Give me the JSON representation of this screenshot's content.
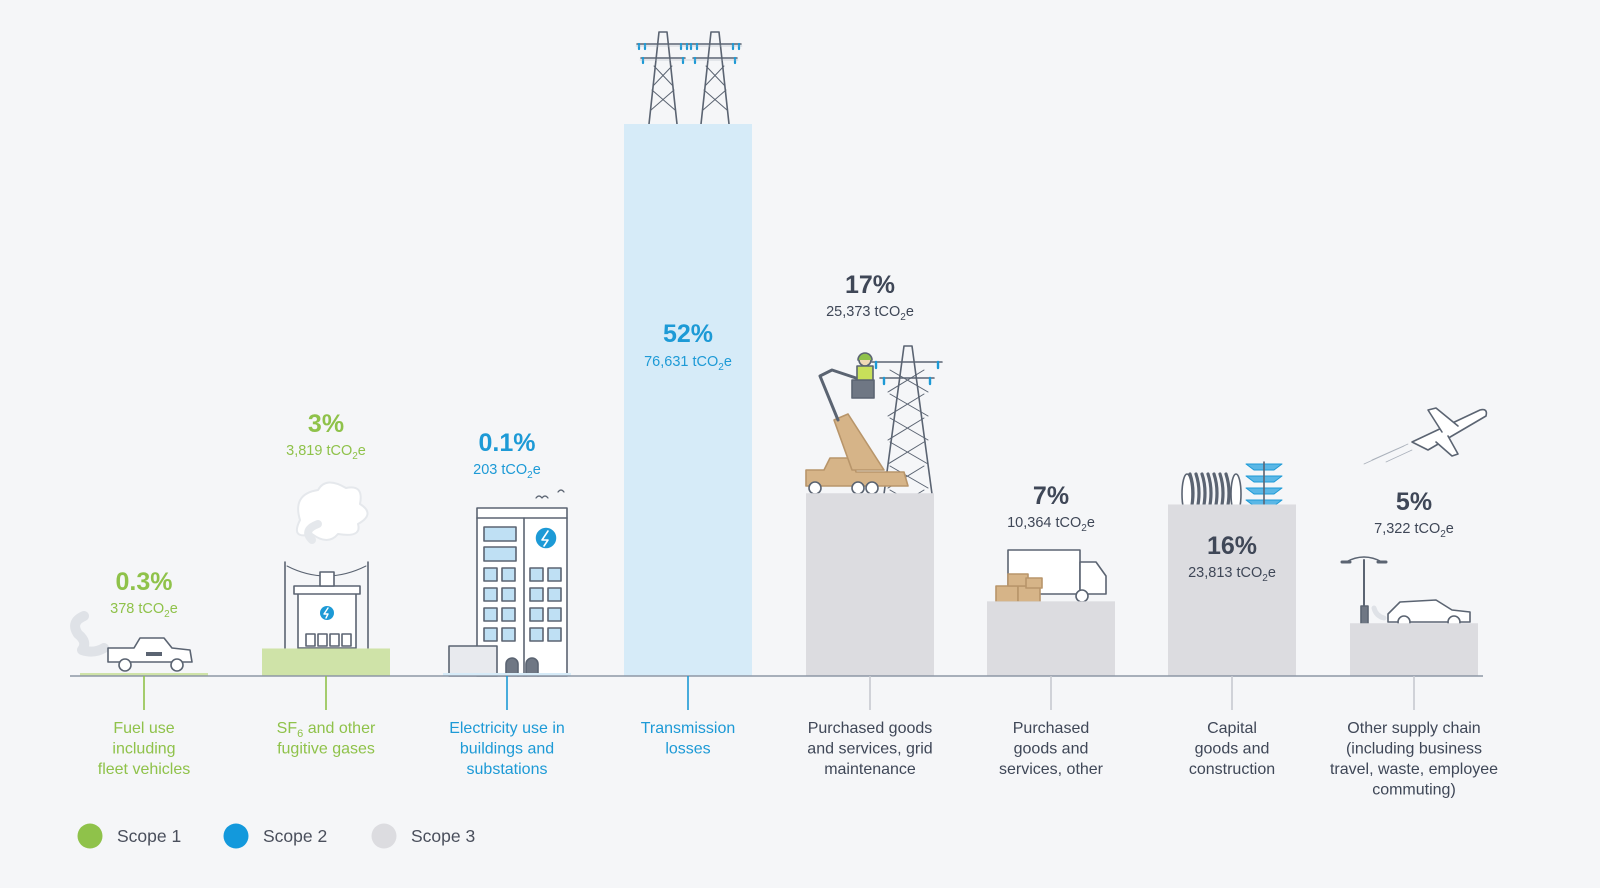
{
  "chart_data": {
    "type": "bar",
    "unit_prefix": "tCO",
    "unit_subscript": "2",
    "unit_suffix": "e",
    "ylim": [
      0,
      76631
    ],
    "grid": false,
    "legend_position": "bottom-left",
    "bars": [
      {
        "category": [
          "Fuel use",
          "including",
          "fleet vehicles"
        ],
        "percent": "0.3%",
        "value": 378,
        "value_label": "378",
        "scope": "scope1",
        "illustration": "pickup-truck-icon"
      },
      {
        "category": [
          "SF6 and other",
          "fugitive gases"
        ],
        "percent": "3%",
        "value": 3819,
        "value_label": "3,819",
        "scope": "scope1",
        "illustration": "substation-icon"
      },
      {
        "category": [
          "Electricity use in",
          "buildings and",
          "substations"
        ],
        "percent": "0.1%",
        "value": 203,
        "value_label": "203",
        "scope": "scope2",
        "illustration": "office-building-icon"
      },
      {
        "category": [
          "Transmission",
          "losses"
        ],
        "percent": "52%",
        "value": 76631,
        "value_label": "76,631",
        "scope": "scope2",
        "illustration": "transmission-tower-icon"
      },
      {
        "category": [
          "Purchased goods",
          "and services, grid",
          "maintenance"
        ],
        "percent": "17%",
        "value": 25373,
        "value_label": "25,373",
        "scope": "scope3",
        "illustration": "bucket-truck-icon"
      },
      {
        "category": [
          "Purchased",
          "goods and",
          "services, other"
        ],
        "percent": "7%",
        "value": 10364,
        "value_label": "10,364",
        "scope": "scope3",
        "illustration": "delivery-truck-icon"
      },
      {
        "category": [
          "Capital",
          "goods and",
          "construction"
        ],
        "percent": "16%",
        "value": 23813,
        "value_label": "23,813",
        "scope": "scope3",
        "illustration": "cable-reel-icon"
      },
      {
        "category": [
          "Other supply chain",
          "(including business",
          "travel, waste, employee",
          "commuting)"
        ],
        "percent": "5%",
        "value": 7322,
        "value_label": "7,322",
        "scope": "scope3",
        "illustration": "airplane-car-icon"
      }
    ],
    "legend": [
      {
        "key": "scope1",
        "label": "Scope 1"
      },
      {
        "key": "scope2",
        "label": "Scope 2"
      },
      {
        "key": "scope3",
        "label": "Scope 3"
      }
    ]
  },
  "colors": {
    "scope1_text": "#8fc24a",
    "scope1_bar": "#cfe3a8",
    "scope1_dot": "#8fc24a",
    "scope2_text": "#1d9ad6",
    "scope2_bar": "#d6ebf8",
    "scope2_dot": "#1399dc",
    "scope3_text": "#3f4757",
    "scope3_bar": "#dcdce0",
    "scope3_dot": "#dcdce0",
    "axis": "#8d97a5",
    "icon_stroke": "#5b6472"
  }
}
